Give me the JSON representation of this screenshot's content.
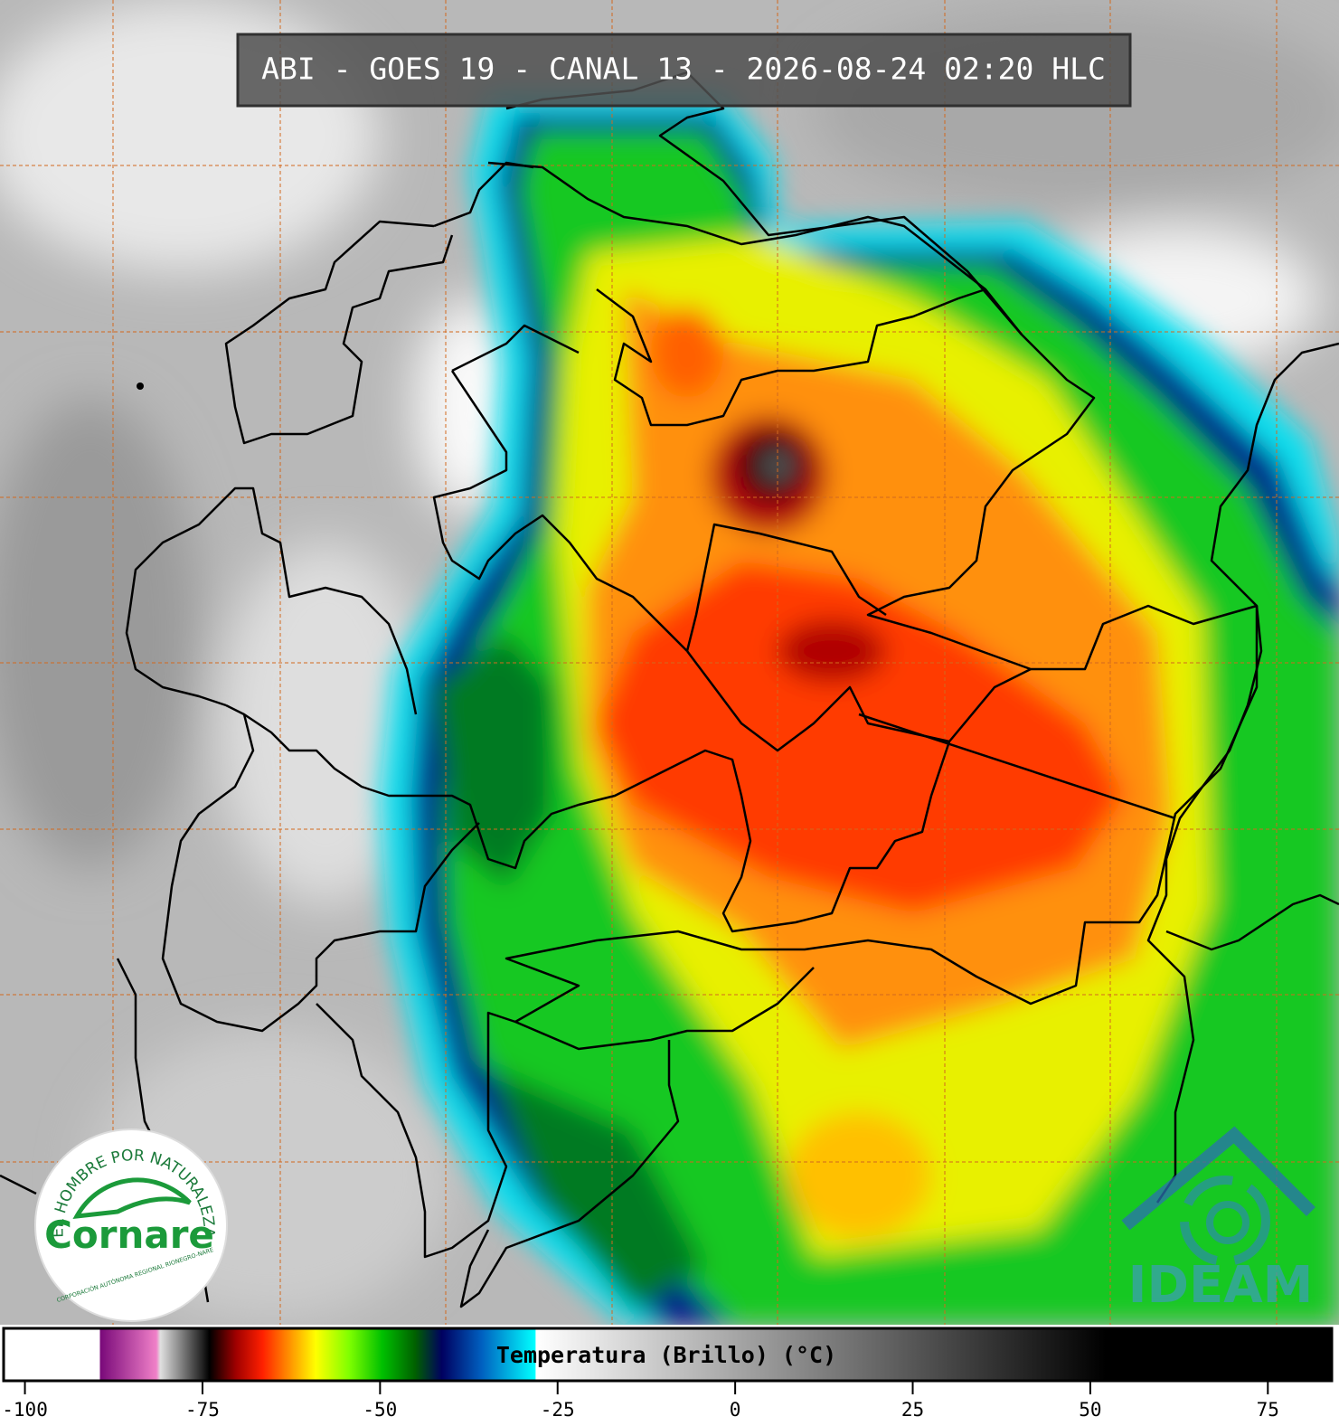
{
  "title": "ABI - GOES 19 - CANAL 13 - 2026-08-24 02:20 HLC",
  "colorbar": {
    "label": "Temperatura (Brillo) (°C)",
    "xlim": [
      -103,
      84
    ],
    "ticks": [
      -100,
      -75,
      -50,
      -25,
      0,
      25,
      50,
      75
    ]
  },
  "logos": {
    "cornare": {
      "motto": "EL HOMBRE POR NATURALEZA",
      "name": "Cornare",
      "subtitle": "CORPORACIÓN AUTÓNOMA REGIONAL RIONEGRO-NARE"
    },
    "ideam": "IDEAM"
  }
}
